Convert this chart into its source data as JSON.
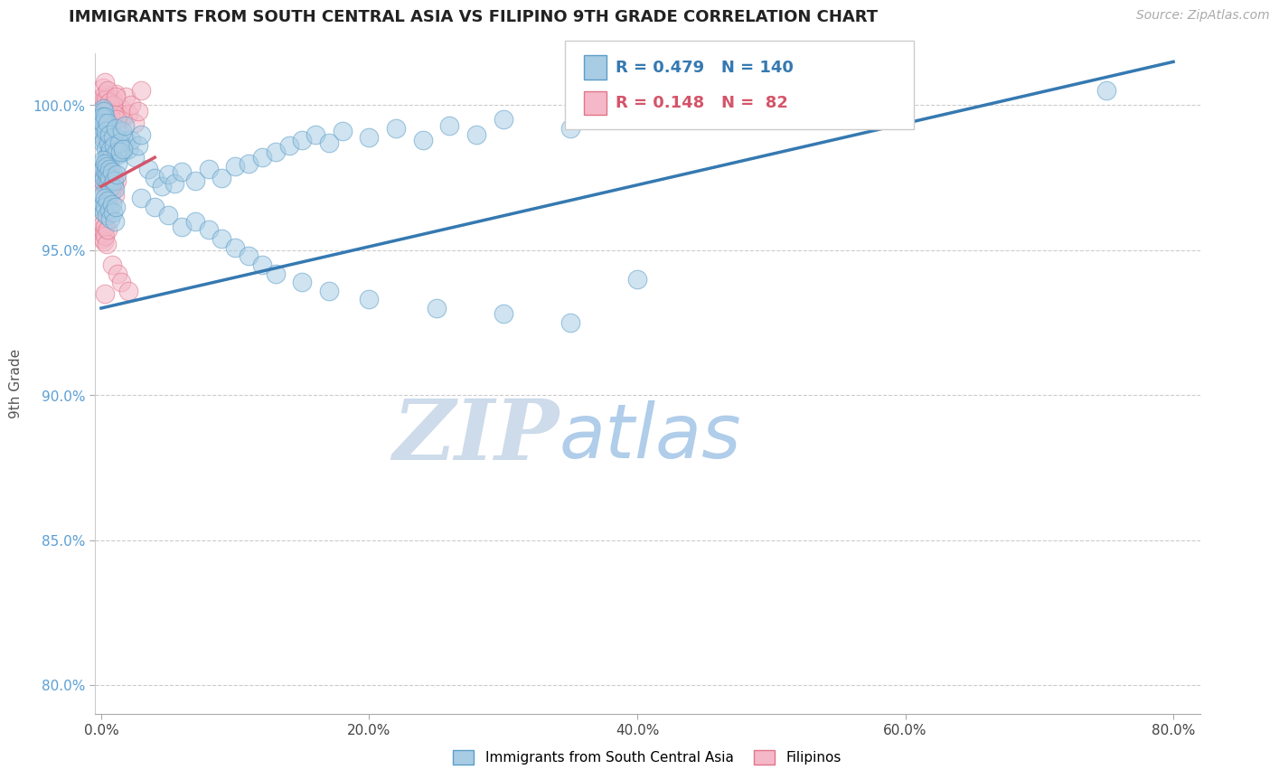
{
  "title": "IMMIGRANTS FROM SOUTH CENTRAL ASIA VS FILIPINO 9TH GRADE CORRELATION CHART",
  "source": "Source: ZipAtlas.com",
  "xlabel_ticks": [
    "0.0%",
    "20.0%",
    "40.0%",
    "60.0%",
    "80.0%"
  ],
  "xlabel_vals": [
    0.0,
    20.0,
    40.0,
    60.0,
    80.0
  ],
  "ylabel_ticks": [
    "80.0%",
    "85.0%",
    "90.0%",
    "95.0%",
    "100.0%"
  ],
  "ylabel_vals": [
    80.0,
    85.0,
    90.0,
    95.0,
    100.0
  ],
  "ylabel_label": "9th Grade",
  "xmin": -0.5,
  "xmax": 82.0,
  "ymin": 79.0,
  "ymax": 101.8,
  "blue_R": 0.479,
  "blue_N": 140,
  "pink_R": 0.148,
  "pink_N": 82,
  "blue_color": "#a8cce4",
  "pink_color": "#f4b8c8",
  "blue_edge_color": "#5b9ec9",
  "pink_edge_color": "#e0758a",
  "blue_line_color": "#3579b1",
  "pink_line_color": "#d4556a",
  "watermark_zip": "ZIP",
  "watermark_atlas": "atlas",
  "watermark_zip_color": "#c8d8e8",
  "watermark_atlas_color": "#a8c8e8",
  "legend_label_blue": "Immigrants from South Central Asia",
  "legend_label_pink": "Filipinos",
  "blue_scatter": [
    [
      0.05,
      99.8
    ],
    [
      0.08,
      99.5
    ],
    [
      0.12,
      99.9
    ],
    [
      0.15,
      99.6
    ],
    [
      0.18,
      99.3
    ],
    [
      0.2,
      99.8
    ],
    [
      0.25,
      99.5
    ],
    [
      0.1,
      99.1
    ],
    [
      0.3,
      99.4
    ],
    [
      0.35,
      99.0
    ],
    [
      0.4,
      99.3
    ],
    [
      0.45,
      99.0
    ],
    [
      0.5,
      98.7
    ],
    [
      0.55,
      99.2
    ],
    [
      0.6,
      98.9
    ],
    [
      0.7,
      98.6
    ],
    [
      0.8,
      98.4
    ],
    [
      0.9,
      98.8
    ],
    [
      1.0,
      98.5
    ],
    [
      1.1,
      98.9
    ],
    [
      1.2,
      98.6
    ],
    [
      1.3,
      98.3
    ],
    [
      1.5,
      98.7
    ],
    [
      1.6,
      98.4
    ],
    [
      1.8,
      98.8
    ],
    [
      2.0,
      98.5
    ],
    [
      2.2,
      98.8
    ],
    [
      2.5,
      98.2
    ],
    [
      2.8,
      98.6
    ],
    [
      3.0,
      99.0
    ],
    [
      0.03,
      99.3
    ],
    [
      0.06,
      99.6
    ],
    [
      0.09,
      99.0
    ],
    [
      0.13,
      98.7
    ],
    [
      0.17,
      99.4
    ],
    [
      0.22,
      98.8
    ],
    [
      0.27,
      99.6
    ],
    [
      0.32,
      98.5
    ],
    [
      0.37,
      99.1
    ],
    [
      0.42,
      98.2
    ],
    [
      0.47,
      99.4
    ],
    [
      0.52,
      98.7
    ],
    [
      0.57,
      98.3
    ],
    [
      0.62,
      99.0
    ],
    [
      0.68,
      98.5
    ],
    [
      0.75,
      98.2
    ],
    [
      0.85,
      98.9
    ],
    [
      0.95,
      98.6
    ],
    [
      1.05,
      99.2
    ],
    [
      1.15,
      98.4
    ],
    [
      1.25,
      98.0
    ],
    [
      1.35,
      98.7
    ],
    [
      1.45,
      98.4
    ],
    [
      1.55,
      99.1
    ],
    [
      1.65,
      98.5
    ],
    [
      1.75,
      99.3
    ],
    [
      0.04,
      98.0
    ],
    [
      0.07,
      97.7
    ],
    [
      0.11,
      97.4
    ],
    [
      0.14,
      98.1
    ],
    [
      0.16,
      97.8
    ],
    [
      0.23,
      97.5
    ],
    [
      0.29,
      98.0
    ],
    [
      0.33,
      97.7
    ],
    [
      0.38,
      97.4
    ],
    [
      0.43,
      97.9
    ],
    [
      0.48,
      97.6
    ],
    [
      0.53,
      97.3
    ],
    [
      0.58,
      97.8
    ],
    [
      0.63,
      97.5
    ],
    [
      0.72,
      97.2
    ],
    [
      0.82,
      97.7
    ],
    [
      0.92,
      97.4
    ],
    [
      1.02,
      97.1
    ],
    [
      1.12,
      97.6
    ],
    [
      0.02,
      96.8
    ],
    [
      0.06,
      96.5
    ],
    [
      0.1,
      96.9
    ],
    [
      0.14,
      96.6
    ],
    [
      0.18,
      96.3
    ],
    [
      0.25,
      96.8
    ],
    [
      0.3,
      96.5
    ],
    [
      0.4,
      96.2
    ],
    [
      0.5,
      96.7
    ],
    [
      0.6,
      96.4
    ],
    [
      0.7,
      96.1
    ],
    [
      0.8,
      96.6
    ],
    [
      0.9,
      96.3
    ],
    [
      1.0,
      96.0
    ],
    [
      1.1,
      96.5
    ],
    [
      3.5,
      97.8
    ],
    [
      4.0,
      97.5
    ],
    [
      4.5,
      97.2
    ],
    [
      5.0,
      97.6
    ],
    [
      5.5,
      97.3
    ],
    [
      6.0,
      97.7
    ],
    [
      7.0,
      97.4
    ],
    [
      8.0,
      97.8
    ],
    [
      9.0,
      97.5
    ],
    [
      10.0,
      97.9
    ],
    [
      11.0,
      98.0
    ],
    [
      12.0,
      98.2
    ],
    [
      13.0,
      98.4
    ],
    [
      14.0,
      98.6
    ],
    [
      15.0,
      98.8
    ],
    [
      16.0,
      99.0
    ],
    [
      17.0,
      98.7
    ],
    [
      18.0,
      99.1
    ],
    [
      20.0,
      98.9
    ],
    [
      22.0,
      99.2
    ],
    [
      24.0,
      98.8
    ],
    [
      26.0,
      99.3
    ],
    [
      28.0,
      99.0
    ],
    [
      30.0,
      99.5
    ],
    [
      35.0,
      99.2
    ],
    [
      3.0,
      96.8
    ],
    [
      4.0,
      96.5
    ],
    [
      5.0,
      96.2
    ],
    [
      6.0,
      95.8
    ],
    [
      7.0,
      96.0
    ],
    [
      8.0,
      95.7
    ],
    [
      9.0,
      95.4
    ],
    [
      10.0,
      95.1
    ],
    [
      11.0,
      94.8
    ],
    [
      12.0,
      94.5
    ],
    [
      13.0,
      94.2
    ],
    [
      15.0,
      93.9
    ],
    [
      17.0,
      93.6
    ],
    [
      20.0,
      93.3
    ],
    [
      25.0,
      93.0
    ],
    [
      30.0,
      92.8
    ],
    [
      35.0,
      92.5
    ],
    [
      40.0,
      94.0
    ],
    [
      75.0,
      100.5
    ]
  ],
  "pink_scatter": [
    [
      0.05,
      99.8
    ],
    [
      0.08,
      99.5
    ],
    [
      0.12,
      100.0
    ],
    [
      0.15,
      99.7
    ],
    [
      0.18,
      99.4
    ],
    [
      0.2,
      100.2
    ],
    [
      0.25,
      99.8
    ],
    [
      0.28,
      100.4
    ],
    [
      0.3,
      99.3
    ],
    [
      0.35,
      100.0
    ],
    [
      0.4,
      99.6
    ],
    [
      0.45,
      100.3
    ],
    [
      0.5,
      99.9
    ],
    [
      0.55,
      99.5
    ],
    [
      0.6,
      100.1
    ],
    [
      0.7,
      99.7
    ],
    [
      0.8,
      99.4
    ],
    [
      0.9,
      100.2
    ],
    [
      1.0,
      99.8
    ],
    [
      1.1,
      100.4
    ],
    [
      1.2,
      99.5
    ],
    [
      1.3,
      99.2
    ],
    [
      1.5,
      99.9
    ],
    [
      1.6,
      99.6
    ],
    [
      1.8,
      100.3
    ],
    [
      2.0,
      99.7
    ],
    [
      2.2,
      100.0
    ],
    [
      2.5,
      99.4
    ],
    [
      2.8,
      99.8
    ],
    [
      3.0,
      100.5
    ],
    [
      0.03,
      99.0
    ],
    [
      0.06,
      99.7
    ],
    [
      0.1,
      100.3
    ],
    [
      0.13,
      99.0
    ],
    [
      0.17,
      100.6
    ],
    [
      0.22,
      99.2
    ],
    [
      0.27,
      100.8
    ],
    [
      0.32,
      99.6
    ],
    [
      0.37,
      100.2
    ],
    [
      0.42,
      99.3
    ],
    [
      0.47,
      100.5
    ],
    [
      0.52,
      99.8
    ],
    [
      0.57,
      99.4
    ],
    [
      0.62,
      100.1
    ],
    [
      0.68,
      99.6
    ],
    [
      0.75,
      99.3
    ],
    [
      0.85,
      100.0
    ],
    [
      0.95,
      99.7
    ],
    [
      1.05,
      100.3
    ],
    [
      1.15,
      99.5
    ],
    [
      0.02,
      97.8
    ],
    [
      0.07,
      97.5
    ],
    [
      0.09,
      97.2
    ],
    [
      0.14,
      97.9
    ],
    [
      0.16,
      97.6
    ],
    [
      0.23,
      97.3
    ],
    [
      0.29,
      97.8
    ],
    [
      0.33,
      97.5
    ],
    [
      0.38,
      97.2
    ],
    [
      0.43,
      97.7
    ],
    [
      0.48,
      97.4
    ],
    [
      0.53,
      97.1
    ],
    [
      0.58,
      97.6
    ],
    [
      0.63,
      97.3
    ],
    [
      0.72,
      97.0
    ],
    [
      0.82,
      97.5
    ],
    [
      0.92,
      97.2
    ],
    [
      1.02,
      96.9
    ],
    [
      1.12,
      97.4
    ],
    [
      0.05,
      96.0
    ],
    [
      0.08,
      95.7
    ],
    [
      0.12,
      95.4
    ],
    [
      0.15,
      95.9
    ],
    [
      0.18,
      95.6
    ],
    [
      0.2,
      95.3
    ],
    [
      0.25,
      95.8
    ],
    [
      0.3,
      95.5
    ],
    [
      0.4,
      95.2
    ],
    [
      0.5,
      95.7
    ],
    [
      0.8,
      94.5
    ],
    [
      1.2,
      94.2
    ],
    [
      1.5,
      93.9
    ],
    [
      2.0,
      93.6
    ],
    [
      0.3,
      93.5
    ]
  ]
}
